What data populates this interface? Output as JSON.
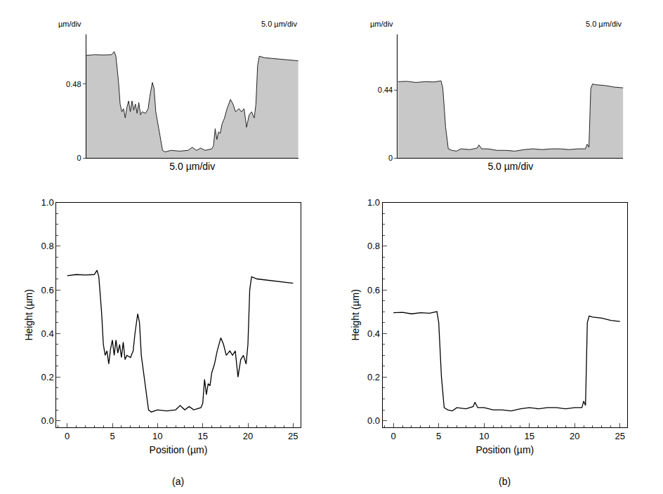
{
  "chart_data": [
    {
      "type": "area",
      "color": "#c8c8c8",
      "x": [
        0,
        1,
        2,
        3,
        3.3,
        3.5,
        3.8,
        4.0,
        4.2,
        4.4,
        4.6,
        4.8,
        5.0,
        5.2,
        5.4,
        5.6,
        5.8,
        6.0,
        6.2,
        6.4,
        6.6,
        7.0,
        7.3,
        7.5,
        7.8,
        8.0,
        8.2,
        8.5,
        8.8,
        9.0,
        9.3,
        10,
        11,
        12,
        12.5,
        13,
        13.5,
        14,
        14.8,
        15.0,
        15.2,
        15.4,
        15.6,
        15.8,
        16.0,
        16.3,
        16.6,
        17.0,
        17.3,
        17.6,
        18.0,
        18.3,
        18.6,
        18.9,
        19.2,
        19.5,
        19.8,
        20.0,
        20.2,
        20.4,
        21,
        22,
        23,
        24,
        25
      ],
      "values": [
        0.665,
        0.67,
        0.668,
        0.67,
        0.69,
        0.66,
        0.5,
        0.35,
        0.3,
        0.32,
        0.26,
        0.33,
        0.37,
        0.3,
        0.37,
        0.31,
        0.35,
        0.29,
        0.36,
        0.28,
        0.3,
        0.29,
        0.32,
        0.4,
        0.49,
        0.45,
        0.3,
        0.2,
        0.1,
        0.05,
        0.04,
        0.05,
        0.045,
        0.05,
        0.07,
        0.05,
        0.065,
        0.05,
        0.06,
        0.08,
        0.19,
        0.12,
        0.17,
        0.16,
        0.22,
        0.26,
        0.32,
        0.38,
        0.35,
        0.3,
        0.32,
        0.3,
        0.32,
        0.2,
        0.28,
        0.3,
        0.26,
        0.35,
        0.6,
        0.66,
        0.65,
        0.645,
        0.64,
        0.635,
        0.63
      ],
      "xlim": [
        0,
        25
      ],
      "ylim": [
        0,
        0.8
      ],
      "yticks": [
        0,
        0.48
      ],
      "tick_labels": "y",
      "y_label": "µm/div",
      "x_label": "5.0 µm/div",
      "annotations": [
        {
          "text": "5.0 µm/div"
        }
      ]
    },
    {
      "type": "area",
      "color": "#c8c8c8",
      "x": [
        0,
        1,
        2,
        3,
        4,
        4.8,
        5.0,
        5.3,
        5.6,
        6,
        6.5,
        7,
        8,
        8.8,
        9.0,
        9.3,
        10,
        11,
        12,
        13,
        14,
        15,
        16,
        17,
        18,
        19,
        20,
        20.8,
        21.0,
        21.2,
        21.4,
        21.6,
        22,
        23,
        24,
        25
      ],
      "values": [
        0.495,
        0.497,
        0.49,
        0.495,
        0.493,
        0.5,
        0.45,
        0.2,
        0.06,
        0.05,
        0.045,
        0.06,
        0.055,
        0.065,
        0.085,
        0.06,
        0.06,
        0.05,
        0.05,
        0.045,
        0.055,
        0.06,
        0.055,
        0.06,
        0.06,
        0.055,
        0.06,
        0.06,
        0.09,
        0.07,
        0.45,
        0.48,
        0.475,
        0.47,
        0.46,
        0.455
      ],
      "xlim": [
        0,
        25
      ],
      "ylim": [
        0,
        0.8
      ],
      "yticks": [
        0,
        0.44
      ],
      "tick_labels": "y",
      "y_label": "µm/div",
      "x_label": "5.0 µm/div",
      "annotations": [
        {
          "text": "5.0 µm/div"
        }
      ]
    },
    {
      "type": "line",
      "color": "#000000",
      "caption": "(a)",
      "x": [
        0,
        1,
        2,
        3,
        3.3,
        3.5,
        3.8,
        4.0,
        4.2,
        4.4,
        4.6,
        4.8,
        5.0,
        5.2,
        5.4,
        5.6,
        5.8,
        6.0,
        6.2,
        6.4,
        6.6,
        7.0,
        7.3,
        7.5,
        7.8,
        8.0,
        8.2,
        8.5,
        8.8,
        9.0,
        9.3,
        10,
        11,
        12,
        12.5,
        13,
        13.5,
        14,
        14.8,
        15.0,
        15.2,
        15.4,
        15.6,
        15.8,
        16.0,
        16.3,
        16.6,
        17.0,
        17.3,
        17.6,
        18.0,
        18.3,
        18.6,
        18.9,
        19.2,
        19.5,
        19.8,
        20.0,
        20.2,
        20.4,
        21,
        22,
        23,
        24,
        25
      ],
      "values": [
        0.665,
        0.67,
        0.668,
        0.67,
        0.69,
        0.66,
        0.5,
        0.35,
        0.3,
        0.32,
        0.26,
        0.33,
        0.37,
        0.3,
        0.37,
        0.31,
        0.35,
        0.29,
        0.36,
        0.28,
        0.3,
        0.29,
        0.32,
        0.4,
        0.49,
        0.45,
        0.3,
        0.2,
        0.1,
        0.05,
        0.04,
        0.05,
        0.045,
        0.05,
        0.07,
        0.05,
        0.065,
        0.05,
        0.06,
        0.08,
        0.19,
        0.12,
        0.17,
        0.16,
        0.22,
        0.26,
        0.32,
        0.38,
        0.35,
        0.3,
        0.32,
        0.3,
        0.32,
        0.2,
        0.28,
        0.3,
        0.26,
        0.35,
        0.6,
        0.66,
        0.65,
        0.645,
        0.64,
        0.635,
        0.63
      ],
      "xlim": [
        -1.2,
        25.8
      ],
      "ylim": [
        -0.03,
        1.0
      ],
      "xticks": [
        0,
        5,
        10,
        15,
        20,
        25
      ],
      "yticks": [
        {
          "value": 0,
          "label": "0.0"
        },
        {
          "value": 0.2,
          "label": "0.2"
        },
        {
          "value": 0.4,
          "label": "0.4"
        },
        {
          "value": 0.6,
          "label": "0.6"
        },
        {
          "value": 0.8,
          "label": "0.8"
        },
        {
          "value": 1.0,
          "label": "1.0"
        }
      ],
      "x_label": "Position (µm)",
      "y_label": "Height (µm)"
    },
    {
      "type": "line",
      "color": "#000000",
      "caption": "(b)",
      "x": [
        0,
        1,
        2,
        3,
        4,
        4.8,
        5.0,
        5.3,
        5.6,
        6,
        6.5,
        7,
        8,
        8.8,
        9.0,
        9.3,
        10,
        11,
        12,
        13,
        14,
        15,
        16,
        17,
        18,
        19,
        20,
        20.8,
        21.0,
        21.2,
        21.4,
        21.6,
        22,
        23,
        24,
        25
      ],
      "values": [
        0.495,
        0.497,
        0.49,
        0.495,
        0.493,
        0.5,
        0.45,
        0.2,
        0.06,
        0.05,
        0.045,
        0.06,
        0.055,
        0.065,
        0.085,
        0.06,
        0.06,
        0.05,
        0.05,
        0.045,
        0.055,
        0.06,
        0.055,
        0.06,
        0.06,
        0.055,
        0.06,
        0.06,
        0.09,
        0.07,
        0.45,
        0.48,
        0.475,
        0.47,
        0.46,
        0.455
      ],
      "xlim": [
        -1.2,
        25.8
      ],
      "ylim": [
        -0.03,
        1.0
      ],
      "xticks": [
        0,
        5,
        10,
        15,
        20,
        25
      ],
      "yticks": [
        {
          "value": 0,
          "label": "0.0"
        },
        {
          "value": 0.2,
          "label": "0.2"
        },
        {
          "value": 0.4,
          "label": "0.4"
        },
        {
          "value": 0.6,
          "label": "0.6"
        },
        {
          "value": 0.8,
          "label": "0.8"
        },
        {
          "value": 1.0,
          "label": "1.0"
        }
      ],
      "x_label": "Position (µm)",
      "y_label": "Height (µm)"
    }
  ]
}
